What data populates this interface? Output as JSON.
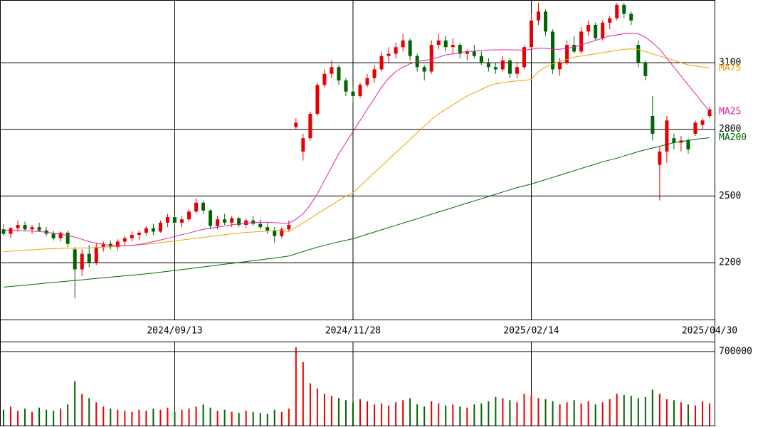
{
  "chart_data": {
    "type": "candlestick",
    "categories": [
      null,
      null,
      null,
      null,
      null,
      null,
      null,
      null,
      null,
      null,
      null,
      null,
      null,
      null,
      null,
      null,
      null,
      null,
      null,
      null,
      null,
      null,
      null,
      null,
      "2024/09/13",
      null,
      null,
      null,
      null,
      null,
      null,
      null,
      null,
      null,
      null,
      null,
      null,
      null,
      null,
      null,
      null,
      null,
      null,
      null,
      null,
      null,
      null,
      null,
      null,
      "2024/11/28",
      null,
      null,
      null,
      null,
      null,
      null,
      null,
      null,
      null,
      null,
      null,
      null,
      null,
      null,
      null,
      null,
      null,
      null,
      null,
      null,
      null,
      null,
      null,
      null,
      "2025/02/14",
      null,
      null,
      null,
      null,
      null,
      null,
      null,
      null,
      null,
      null,
      null,
      null,
      null,
      null,
      null,
      null,
      null,
      null,
      null,
      null,
      null,
      null,
      null,
      null,
      "2025/04/30"
    ],
    "open": [
      2350,
      2330,
      2355,
      2370,
      2350,
      2360,
      2345,
      2330,
      2310,
      2335,
      2260,
      2170,
      2240,
      2200,
      2270,
      2285,
      2270,
      2295,
      2310,
      2325,
      2335,
      2355,
      2340,
      2380,
      2405,
      2380,
      2395,
      2430,
      2470,
      2435,
      2365,
      2395,
      2380,
      2400,
      2370,
      2390,
      2375,
      2360,
      2345,
      2320,
      2350,
      2810,
      2700,
      2760,
      2870,
      3000,
      3050,
      3080,
      3020,
      2970,
      2950,
      3000,
      3030,
      3070,
      3130,
      3140,
      3170,
      3200,
      3130,
      3080,
      3060,
      3180,
      3200,
      3170,
      3180,
      3140,
      3150,
      3130,
      3100,
      3080,
      3070,
      3110,
      3050,
      3080,
      3170,
      3290,
      3330,
      3240,
      3070,
      3100,
      3180,
      3150,
      3240,
      3270,
      3210,
      3280,
      3300,
      3360,
      3320,
      3180,
      3100,
      2860,
      2640,
      2700,
      2760,
      2740,
      2750,
      2780,
      2820,
      2860
    ],
    "high": [
      2375,
      2360,
      2390,
      2385,
      2370,
      2380,
      2360,
      2345,
      2340,
      2345,
      2270,
      2260,
      2280,
      2290,
      2295,
      2300,
      2305,
      2320,
      2340,
      2345,
      2365,
      2375,
      2390,
      2420,
      2420,
      2410,
      2440,
      2490,
      2480,
      2440,
      2410,
      2420,
      2410,
      2405,
      2400,
      2410,
      2395,
      2380,
      2360,
      2360,
      2390,
      2850,
      2780,
      2880,
      3010,
      3070,
      3110,
      3090,
      3030,
      2990,
      3010,
      3050,
      3090,
      3150,
      3170,
      3190,
      3230,
      3210,
      3140,
      3090,
      3200,
      3230,
      3220,
      3210,
      3190,
      3160,
      3180,
      3150,
      3120,
      3100,
      3130,
      3120,
      3100,
      3180,
      3320,
      3370,
      3340,
      3250,
      3120,
      3200,
      3220,
      3260,
      3290,
      3280,
      3290,
      3310,
      3370,
      3370,
      3330,
      3200,
      3110,
      2950,
      2720,
      2860,
      2780,
      2770,
      2760,
      2840,
      2850,
      2900
    ],
    "low": [
      2320,
      2310,
      2340,
      2345,
      2330,
      2340,
      2320,
      2300,
      2295,
      2270,
      2040,
      2140,
      2180,
      2190,
      2250,
      2260,
      2255,
      2275,
      2295,
      2300,
      2320,
      2325,
      2335,
      2360,
      2370,
      2360,
      2385,
      2420,
      2420,
      2350,
      2350,
      2370,
      2360,
      2360,
      2355,
      2365,
      2350,
      2330,
      2290,
      2310,
      2340,
      2800,
      2660,
      2750,
      2860,
      2990,
      3030,
      3000,
      2950,
      2920,
      2940,
      2990,
      3010,
      3060,
      3100,
      3120,
      3150,
      3110,
      3060,
      3020,
      3050,
      3160,
      3150,
      3140,
      3120,
      3110,
      3120,
      3090,
      3060,
      3050,
      3060,
      3030,
      3030,
      3070,
      3160,
      3270,
      3220,
      3050,
      3040,
      3090,
      3140,
      3140,
      3220,
      3200,
      3200,
      3250,
      3290,
      3300,
      3270,
      3080,
      3020,
      2750,
      2480,
      2650,
      2710,
      2700,
      2690,
      2770,
      2800,
      2850
    ],
    "close": [
      2330,
      2355,
      2370,
      2350,
      2360,
      2345,
      2330,
      2310,
      2335,
      2285,
      2170,
      2240,
      2200,
      2270,
      2285,
      2270,
      2295,
      2310,
      2325,
      2335,
      2355,
      2340,
      2380,
      2405,
      2380,
      2395,
      2430,
      2470,
      2435,
      2365,
      2395,
      2380,
      2400,
      2370,
      2390,
      2375,
      2360,
      2345,
      2320,
      2350,
      2370,
      2830,
      2760,
      2870,
      3000,
      3050,
      3080,
      3020,
      2970,
      2950,
      3000,
      3030,
      3070,
      3130,
      3140,
      3170,
      3200,
      3130,
      3080,
      3060,
      3180,
      3200,
      3170,
      3180,
      3140,
      3150,
      3130,
      3100,
      3080,
      3070,
      3110,
      3050,
      3080,
      3170,
      3290,
      3330,
      3240,
      3070,
      3100,
      3180,
      3150,
      3240,
      3270,
      3210,
      3280,
      3300,
      3360,
      3320,
      3290,
      3100,
      3040,
      2780,
      2700,
      2840,
      2740,
      2750,
      2710,
      2830,
      2840,
      2890
    ],
    "up_color": "#e60000",
    "down_color": "#006400",
    "series": [
      {
        "name": "MA75",
        "color": "#f0a000",
        "values": [
          2250,
          2252,
          2254,
          2256,
          2258,
          2260,
          2262,
          2263,
          2264,
          2265,
          2265,
          2266,
          2267,
          2268,
          2270,
          2272,
          2274,
          2276,
          2278,
          2280,
          2283,
          2286,
          2290,
          2294,
          2298,
          2302,
          2306,
          2310,
          2314,
          2318,
          2322,
          2326,
          2330,
          2333,
          2336,
          2338,
          2340,
          2342,
          2344,
          2346,
          2340,
          2360,
          2380,
          2400,
          2420,
          2440,
          2460,
          2480,
          2500,
          2515,
          2545,
          2575,
          2605,
          2635,
          2665,
          2695,
          2725,
          2755,
          2785,
          2815,
          2845,
          2870,
          2890,
          2910,
          2930,
          2950,
          2965,
          2980,
          2995,
          3005,
          3010,
          3015,
          3018,
          3020,
          3025,
          3060,
          3080,
          3095,
          3105,
          3115,
          3125,
          3130,
          3135,
          3140,
          3145,
          3150,
          3155,
          3160,
          3162,
          3160,
          3150,
          3140,
          3130,
          3120,
          3110,
          3100,
          3090,
          3085,
          3080,
          3075
        ]
      },
      {
        "name": "MA25",
        "color": "#e020a0",
        "values": [
          2345,
          2345,
          2344,
          2343,
          2342,
          2340,
          2337,
          2333,
          2328,
          2322,
          2315,
          2305,
          2295,
          2288,
          2282,
          2278,
          2276,
          2276,
          2278,
          2282,
          2288,
          2295,
          2302,
          2310,
          2318,
          2326,
          2334,
          2342,
          2350,
          2355,
          2360,
          2365,
          2370,
          2375,
          2378,
          2380,
          2382,
          2382,
          2380,
          2378,
          2378,
          2395,
          2420,
          2460,
          2510,
          2570,
          2630,
          2690,
          2740,
          2790,
          2840,
          2890,
          2940,
          2990,
          3030,
          3060,
          3080,
          3095,
          3105,
          3110,
          3115,
          3125,
          3135,
          3140,
          3145,
          3150,
          3152,
          3155,
          3157,
          3158,
          3158,
          3158,
          3157,
          3157,
          3160,
          3165,
          3165,
          3160,
          3160,
          3165,
          3170,
          3180,
          3190,
          3200,
          3210,
          3220,
          3225,
          3230,
          3232,
          3230,
          3215,
          3190,
          3160,
          3120,
          3080,
          3040,
          3000,
          2960,
          2920,
          2880
        ]
      },
      {
        "name": "MA200",
        "color": "#006400",
        "values": [
          2090,
          2093,
          2096,
          2099,
          2102,
          2105,
          2108,
          2111,
          2114,
          2117,
          2120,
          2123,
          2126,
          2129,
          2132,
          2135,
          2138,
          2141,
          2144,
          2147,
          2150,
          2153,
          2157,
          2161,
          2165,
          2169,
          2173,
          2177,
          2181,
          2185,
          2189,
          2193,
          2197,
          2201,
          2205,
          2209,
          2213,
          2217,
          2221,
          2225,
          2230,
          2240,
          2250,
          2260,
          2270,
          2278,
          2286,
          2294,
          2301,
          2308,
          2318,
          2328,
          2338,
          2348,
          2358,
          2368,
          2378,
          2388,
          2398,
          2408,
          2418,
          2428,
          2438,
          2448,
          2458,
          2468,
          2478,
          2488,
          2498,
          2508,
          2518,
          2528,
          2538,
          2546,
          2554,
          2564,
          2574,
          2584,
          2594,
          2604,
          2614,
          2624,
          2634,
          2644,
          2654,
          2662,
          2670,
          2680,
          2690,
          2700,
          2708,
          2716,
          2724,
          2732,
          2740,
          2745,
          2750,
          2755,
          2759,
          2762
        ]
      }
    ],
    "ylim": [
      1941,
      3382
    ],
    "yticks": [
      2200,
      2500,
      2800,
      3100
    ],
    "grid": true,
    "volume": {
      "values": [
        150000,
        180000,
        140000,
        160000,
        130000,
        170000,
        150000,
        140000,
        160000,
        200000,
        420000,
        300000,
        260000,
        220000,
        180000,
        160000,
        150000,
        140000,
        130000,
        150000,
        140000,
        160000,
        150000,
        170000,
        130000,
        150000,
        160000,
        180000,
        200000,
        170000,
        140000,
        150000,
        130000,
        120000,
        140000,
        130000,
        120000,
        110000,
        150000,
        130000,
        160000,
        740000,
        600000,
        400000,
        350000,
        300000,
        280000,
        260000,
        240000,
        220000,
        250000,
        230000,
        200000,
        210000,
        190000,
        220000,
        240000,
        260000,
        200000,
        180000,
        230000,
        210000,
        190000,
        200000,
        180000,
        170000,
        200000,
        210000,
        230000,
        270000,
        260000,
        240000,
        220000,
        300000,
        280000,
        260000,
        250000,
        230000,
        200000,
        220000,
        240000,
        210000,
        230000,
        200000,
        220000,
        250000,
        300000,
        290000,
        280000,
        260000,
        270000,
        340000,
        300000,
        250000,
        240000,
        220000,
        200000,
        190000,
        230000,
        210000
      ],
      "ylim": [
        0,
        787500
      ],
      "yticks": [
        700000
      ]
    }
  }
}
